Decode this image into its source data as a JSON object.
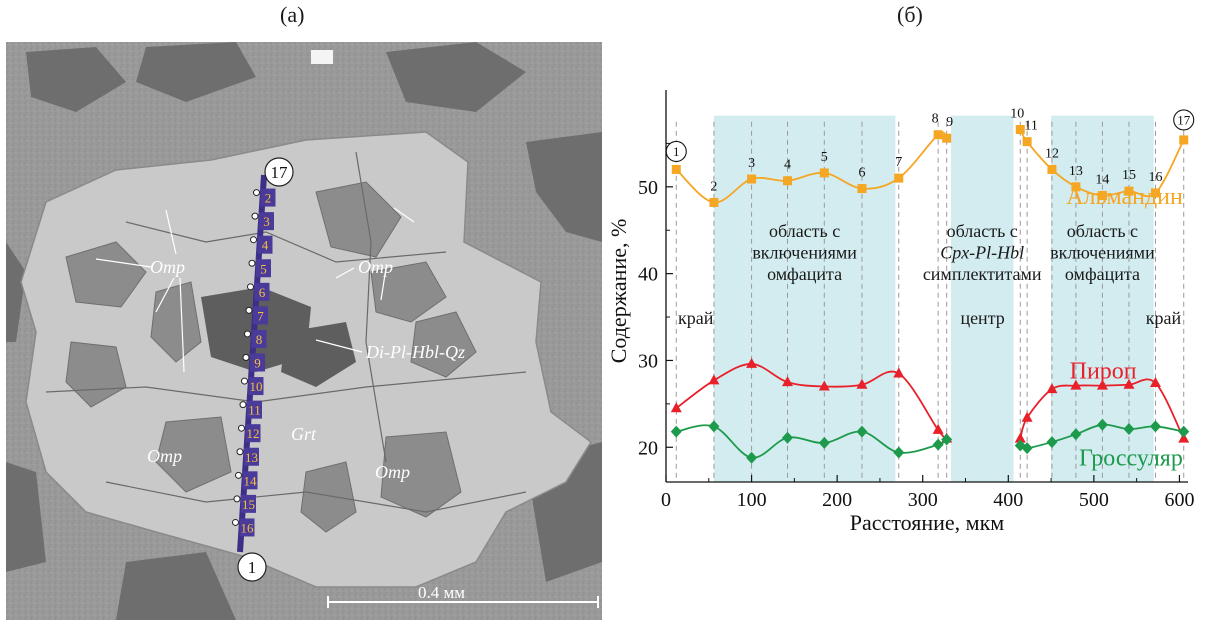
{
  "panel_a": {
    "label": "(а)",
    "scale_bar": "0.4 мм",
    "annotations": {
      "omp_1": "Omp",
      "omp_2": "Omp",
      "omp_3": "Omp",
      "omp_4": "Omp",
      "grt": "Grt",
      "di": "Di-Pl-Hbl-Qz"
    },
    "circle_start": "1",
    "circle_end": "17",
    "point_labels": [
      "2",
      "3",
      "4",
      "5",
      "6",
      "7",
      "8",
      "9",
      "10",
      "11",
      "12",
      "13",
      "14",
      "15",
      "16"
    ]
  },
  "panel_b": {
    "label": "(б)"
  },
  "chart_data": {
    "type": "line",
    "xlabel": "Расстояние, мкм",
    "ylabel": "Содержание, %",
    "xlim": [
      0,
      610
    ],
    "ylim": [
      16,
      60
    ],
    "xticks": [
      0,
      100,
      200,
      300,
      400,
      500,
      600
    ],
    "yticks": [
      20,
      30,
      40,
      50
    ],
    "grid": false,
    "shaded_regions": [
      {
        "x0": 56,
        "x1": 268,
        "label": "область с\nвключениями\nомфацита"
      },
      {
        "x0": 333,
        "x1": 406,
        "label": "область с\n|Cpx-Pl-Hbl|\nсимплектитами"
      },
      {
        "x0": 450,
        "x1": 570,
        "label": "область с\nвключениями\nомфацита"
      }
    ],
    "point_x": [
      12,
      56,
      100,
      142,
      185,
      229,
      272,
      318,
      328,
      414,
      422,
      451,
      479,
      510,
      541,
      572,
      605
    ],
    "point_labels": [
      "1",
      "2",
      "3",
      "4",
      "5",
      "6",
      "7",
      "8",
      "9",
      "10",
      "11",
      "12",
      "13",
      "14",
      "15",
      "16",
      "17"
    ],
    "series": [
      {
        "name": "Альмандин",
        "color": "#f5a623",
        "marker": "square",
        "x": [
          12,
          56,
          100,
          142,
          185,
          229,
          272,
          318,
          328,
          414,
          422,
          451,
          479,
          510,
          541,
          572,
          605
        ],
        "values": [
          52.0,
          48.2,
          50.9,
          50.7,
          51.6,
          49.8,
          51.0,
          56.0,
          55.6,
          56.6,
          55.2,
          52.0,
          50.0,
          49.0,
          49.5,
          49.3,
          55.4
        ]
      },
      {
        "name": "Пироп",
        "color": "#e8202a",
        "marker": "triangle",
        "x": [
          12,
          56,
          100,
          142,
          185,
          229,
          272,
          318,
          328,
          414,
          422,
          451,
          479,
          510,
          541,
          572,
          605
        ],
        "values": [
          24.5,
          27.7,
          29.6,
          27.5,
          27.0,
          27.2,
          28.5,
          22.0,
          21.0,
          21.0,
          23.4,
          26.7,
          27.1,
          27.1,
          27.2,
          27.4,
          21.0
        ]
      },
      {
        "name": "Гроссуляр",
        "color": "#1d9a4c",
        "marker": "diamond",
        "x": [
          12,
          56,
          100,
          142,
          185,
          229,
          272,
          318,
          328,
          414,
          422,
          451,
          479,
          510,
          541,
          572,
          605
        ],
        "values": [
          21.8,
          22.4,
          18.8,
          21.1,
          20.5,
          21.8,
          19.4,
          20.3,
          20.9,
          20.2,
          19.9,
          20.6,
          21.5,
          22.6,
          22.1,
          22.4,
          21.8
        ]
      }
    ],
    "annotations": {
      "edge_left": "край",
      "edge_right": "край",
      "center": "центр"
    }
  }
}
